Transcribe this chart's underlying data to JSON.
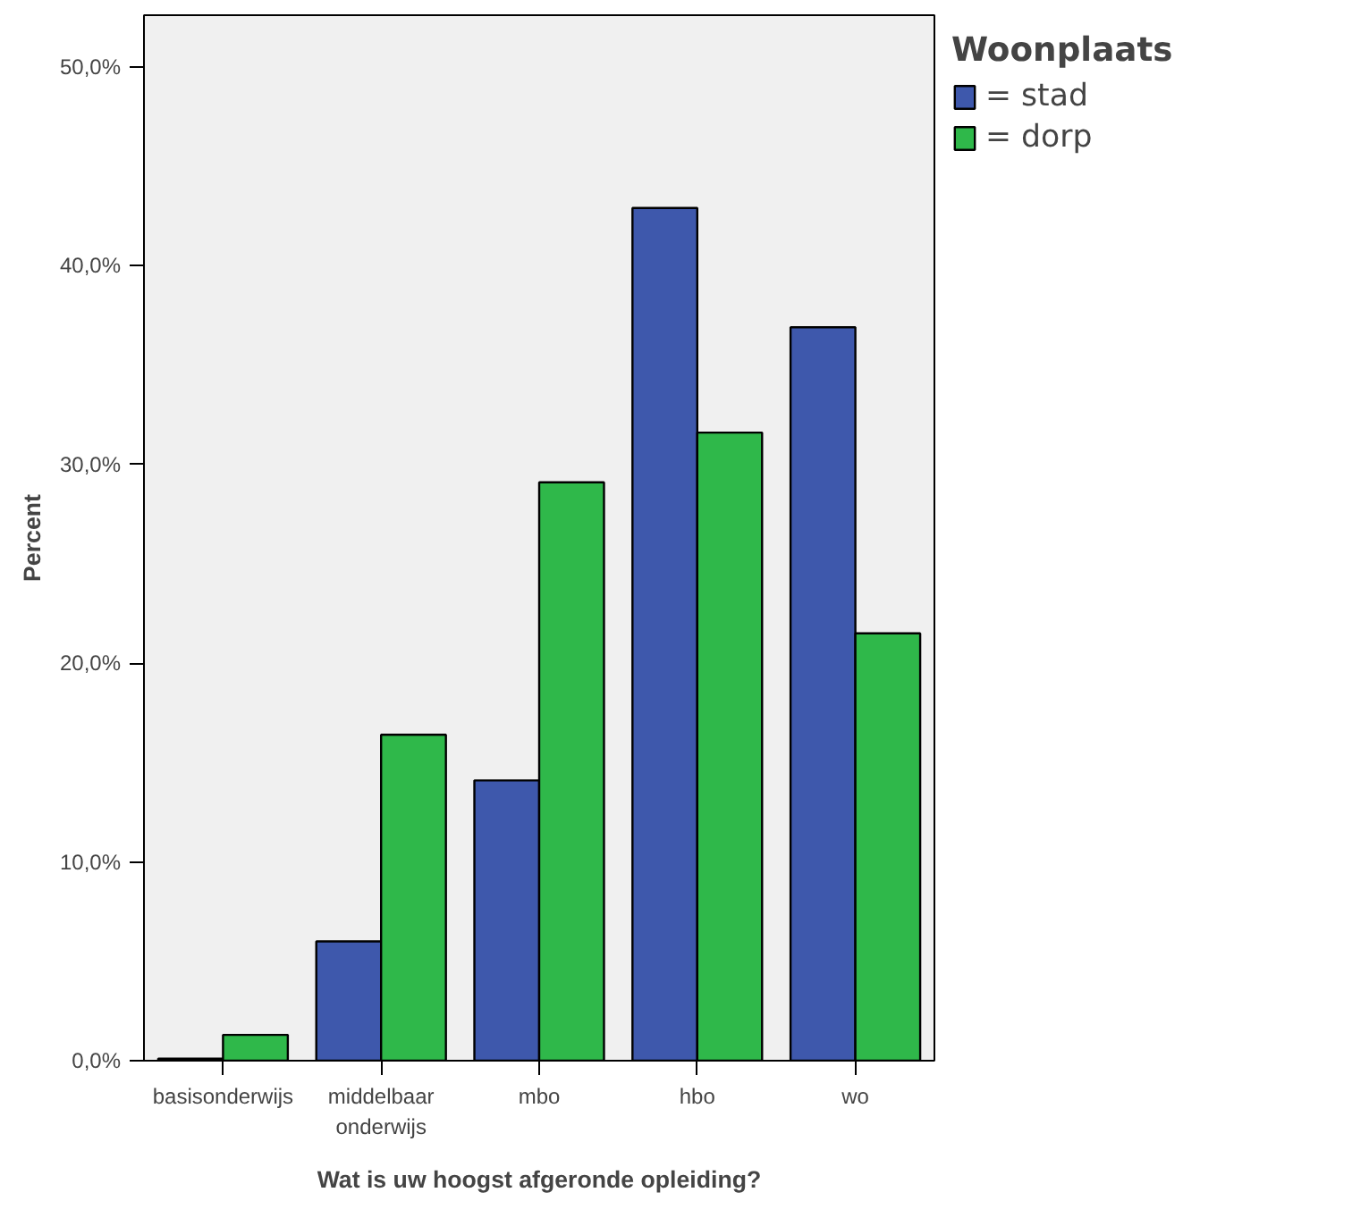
{
  "chart_data": {
    "type": "bar",
    "xlabel": "Wat is uw hoogst afgeronde opleiding?",
    "ylabel": "Percent",
    "legend_title": "Woonplaats",
    "categories": [
      "basisonderwijs",
      "middelbaar onderwijs",
      "mbo",
      "hbo",
      "wo"
    ],
    "series": [
      {
        "name": "= stad",
        "color": "#3e58ac",
        "values": [
          0.1,
          6.0,
          14.1,
          42.9,
          36.9
        ]
      },
      {
        "name": "= dorp",
        "color": "#2fb84a",
        "values": [
          1.3,
          16.4,
          29.1,
          31.6,
          21.5
        ]
      }
    ],
    "ylim": [
      0,
      52.6
    ],
    "yticks": [
      {
        "value": 0,
        "label": "0,0%"
      },
      {
        "value": 10,
        "label": "10,0%"
      },
      {
        "value": 20,
        "label": "20,0%"
      },
      {
        "value": 30,
        "label": "30,0%"
      },
      {
        "value": 40,
        "label": "40,0%"
      },
      {
        "value": 50,
        "label": "50,0%"
      }
    ],
    "grid": false,
    "legend": "top right"
  }
}
